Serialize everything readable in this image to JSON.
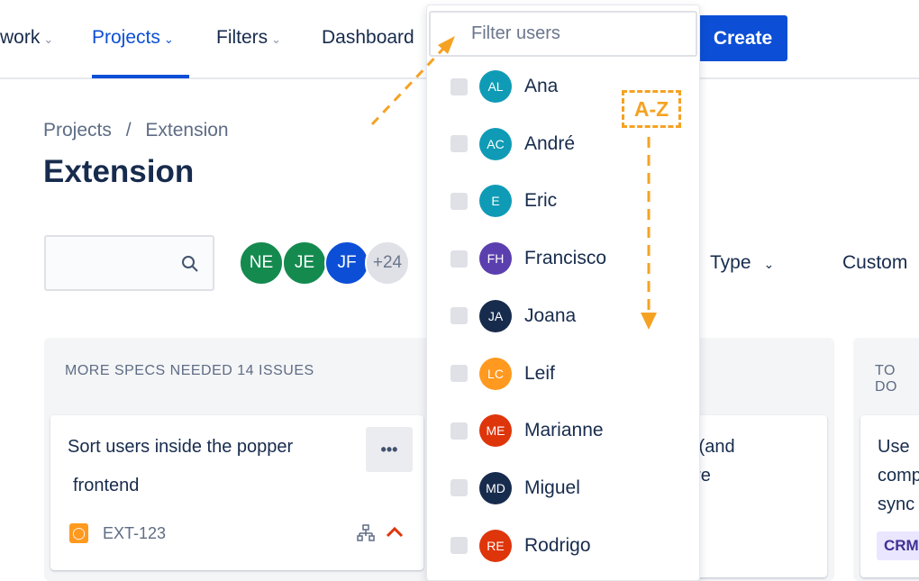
{
  "nav": {
    "items": [
      {
        "label": "work"
      },
      {
        "label": "Projects"
      },
      {
        "label": "Filters"
      },
      {
        "label": "Dashboard"
      }
    ],
    "create_label": "Create"
  },
  "breadcrumb": {
    "items": [
      "Projects",
      "Extension"
    ],
    "separator": "/"
  },
  "page_title": "Extension",
  "avatars": [
    {
      "initials": "NE",
      "color": "#148a4f"
    },
    {
      "initials": "JE",
      "color": "#148a4f"
    },
    {
      "initials": "JF",
      "color": "#0c4fd6"
    },
    {
      "initials": "+24",
      "color": "#dfe1e6"
    }
  ],
  "filters": {
    "type": "Type",
    "custom": "Custom"
  },
  "columns": [
    {
      "header": "MORE SPECS NEEDED 14 ISSUES",
      "card": {
        "title_line1": "Sort users inside the popper",
        "title_line2": "frontend",
        "key": "EXT-123",
        "more": "•••"
      }
    },
    {
      "card": {
        "line1": "s (and",
        "line2": "ere"
      }
    },
    {
      "header": "TO DO",
      "card": {
        "line1": "Use",
        "line2": "comp",
        "line3": "sync",
        "tag": "CRM"
      }
    }
  ],
  "dropdown": {
    "placeholder": "Filter users",
    "users": [
      {
        "initials": "AL",
        "name": "Ana",
        "color": "#0f9bb5"
      },
      {
        "initials": "AC",
        "name": "André",
        "color": "#0f9bb5"
      },
      {
        "initials": "E",
        "name": "Eric",
        "color": "#0f9bb5"
      },
      {
        "initials": "FH",
        "name": "Francisco",
        "color": "#5b3fae"
      },
      {
        "initials": "JA",
        "name": "Joana",
        "color": "#172b4d"
      },
      {
        "initials": "LC",
        "name": "Leif",
        "color": "#ff991f"
      },
      {
        "initials": "ME",
        "name": "Marianne",
        "color": "#de350b"
      },
      {
        "initials": "MD",
        "name": "Miguel",
        "color": "#172b4d"
      },
      {
        "initials": "RE",
        "name": "Rodrigo",
        "color": "#de350b"
      }
    ]
  },
  "annotation": {
    "label": "A-Z",
    "color": "#f5a223"
  }
}
